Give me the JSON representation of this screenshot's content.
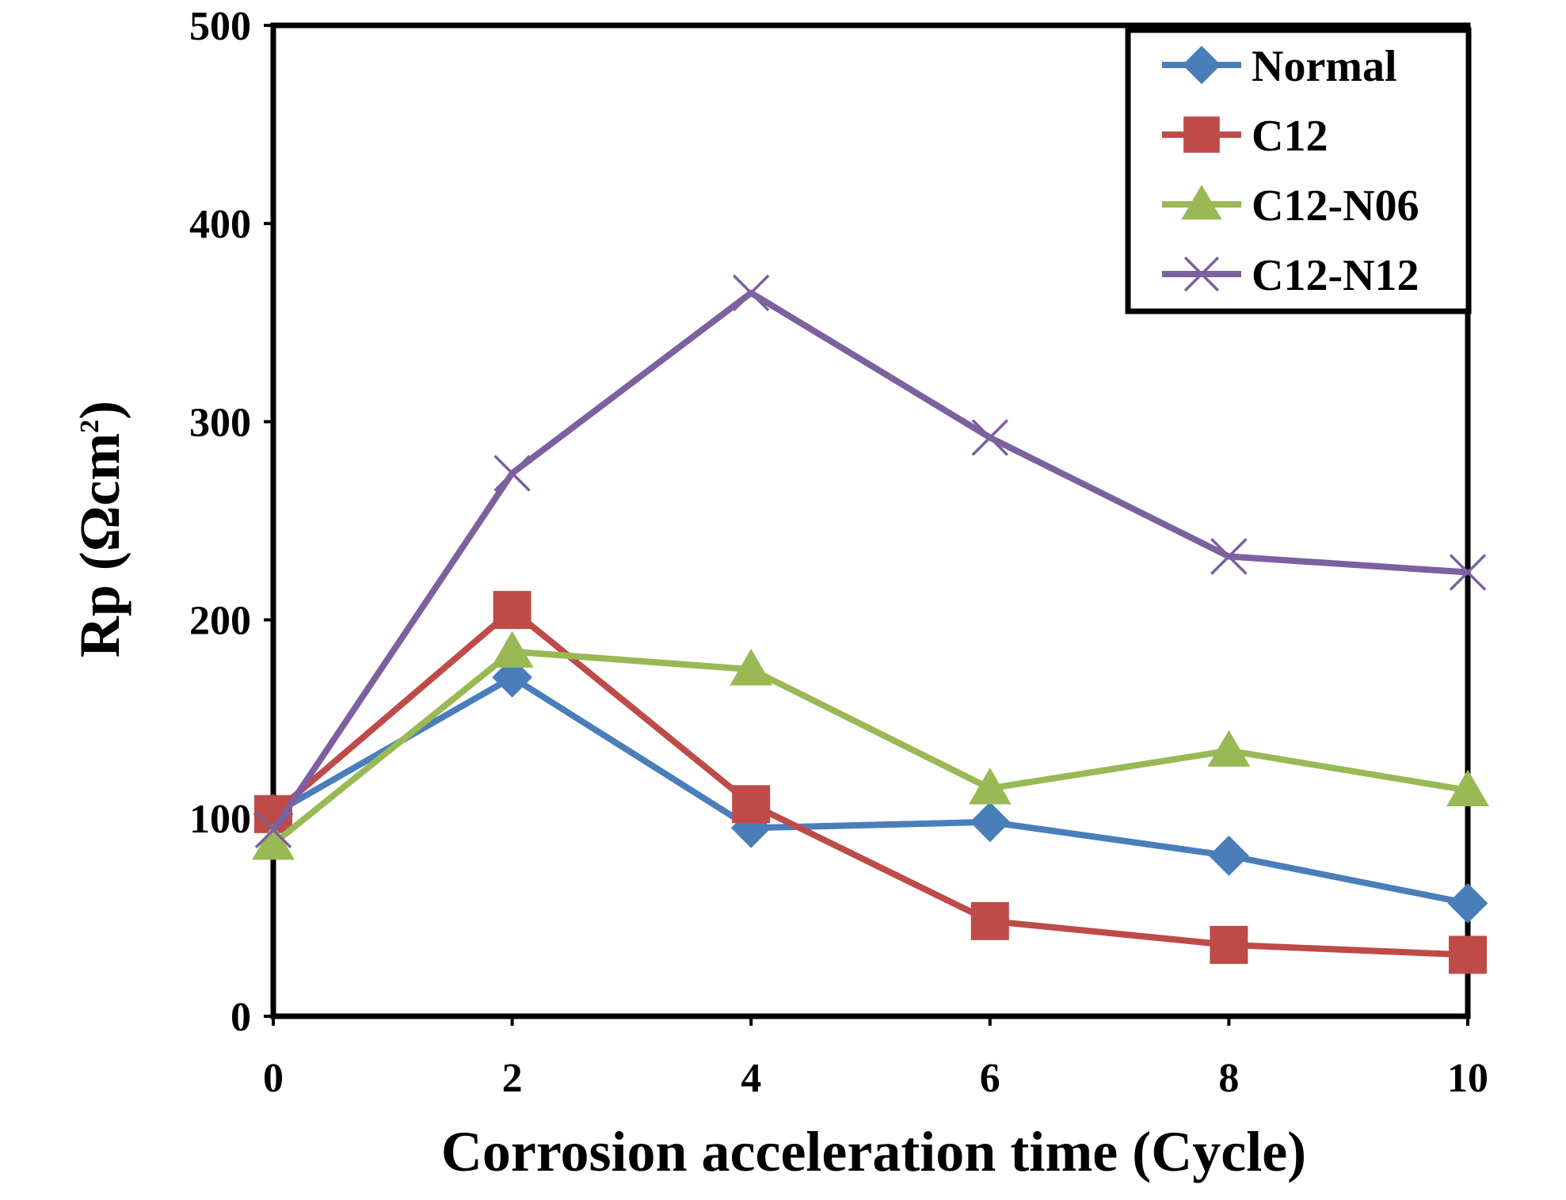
{
  "chart_data": {
    "type": "line",
    "title": "",
    "xlabel": "Corrosion acceleration time (Cycle)",
    "ylabel": "Rp (Ωcm²)",
    "ylabel_main": "Rp (Ωcm",
    "ylabel_sup": "2",
    "ylabel_close": ")",
    "xlim": [
      0,
      10
    ],
    "ylim": [
      0,
      500
    ],
    "x_ticks": [
      0,
      2,
      4,
      6,
      8,
      10
    ],
    "y_ticks": [
      0,
      100,
      200,
      300,
      400,
      500
    ],
    "x": [
      0,
      2,
      4,
      6,
      8,
      10
    ],
    "legend_position": "top-right",
    "grid": false,
    "series": [
      {
        "name": "Normal",
        "color": "#4a7ebb",
        "marker": "diamond",
        "values": [
          102,
          171,
          95,
          98,
          81,
          57
        ]
      },
      {
        "name": "C12",
        "color": "#be4b48",
        "marker": "square",
        "values": [
          102,
          205,
          107,
          48,
          36,
          31
        ]
      },
      {
        "name": "C12-N06",
        "color": "#98b954",
        "marker": "triangle",
        "values": [
          87,
          184,
          175,
          115,
          134,
          114
        ]
      },
      {
        "name": "C12-N12",
        "color": "#7d60a0",
        "marker": "x",
        "values": [
          94,
          274,
          365,
          292,
          232,
          224
        ]
      }
    ]
  }
}
